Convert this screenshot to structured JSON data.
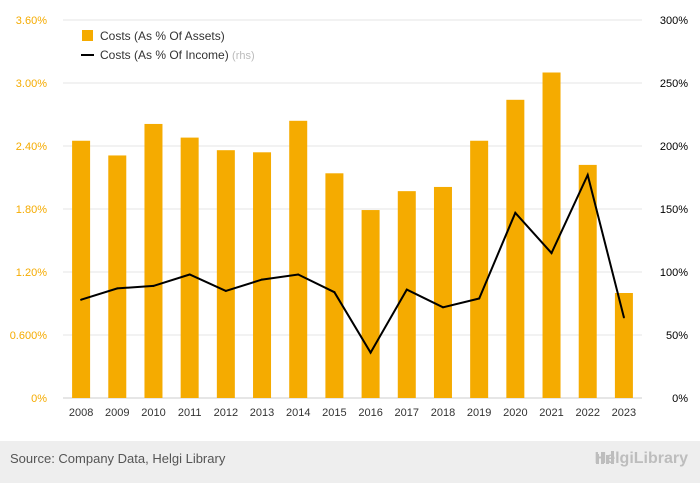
{
  "chart_data": {
    "type": "bar",
    "categories": [
      "2008",
      "2009",
      "2010",
      "2011",
      "2012",
      "2013",
      "2014",
      "2015",
      "2016",
      "2017",
      "2018",
      "2019",
      "2020",
      "2021",
      "2022",
      "2023"
    ],
    "series": [
      {
        "name": "Costs (As % Of Assets)",
        "type": "bar",
        "axis": "left",
        "color": "#f5ab00",
        "values": [
          2.45,
          2.31,
          2.61,
          2.48,
          2.36,
          2.34,
          2.64,
          2.14,
          1.79,
          1.97,
          2.01,
          2.45,
          2.84,
          3.1,
          2.22,
          1.0
        ]
      },
      {
        "name": "Costs (As % Of Income)",
        "type": "line",
        "axis": "right",
        "color": "#000000",
        "values": [
          78,
          87,
          89,
          98,
          85,
          94,
          98,
          84,
          36,
          86,
          72,
          79,
          147,
          115,
          177,
          64
        ]
      }
    ],
    "ylim_left": [
      0,
      3.6
    ],
    "ylim_right": [
      0,
      300
    ],
    "yticks_left": [
      "0%",
      "0.600%",
      "1.20%",
      "1.80%",
      "2.40%",
      "3.00%",
      "3.60%"
    ],
    "yticks_right": [
      "0%",
      "50%",
      "100%",
      "150%",
      "200%",
      "250%",
      "300%"
    ],
    "legend": [
      {
        "label": "Costs (As % Of Assets)",
        "suffix": ""
      },
      {
        "label": "Costs (As % Of Income)",
        "suffix": "(rhs)"
      }
    ],
    "legend_placement": "top-left",
    "grid": true
  },
  "footer": {
    "source": "Source: Company Data, Helgi Library",
    "brand": "HelgiLibrary"
  }
}
